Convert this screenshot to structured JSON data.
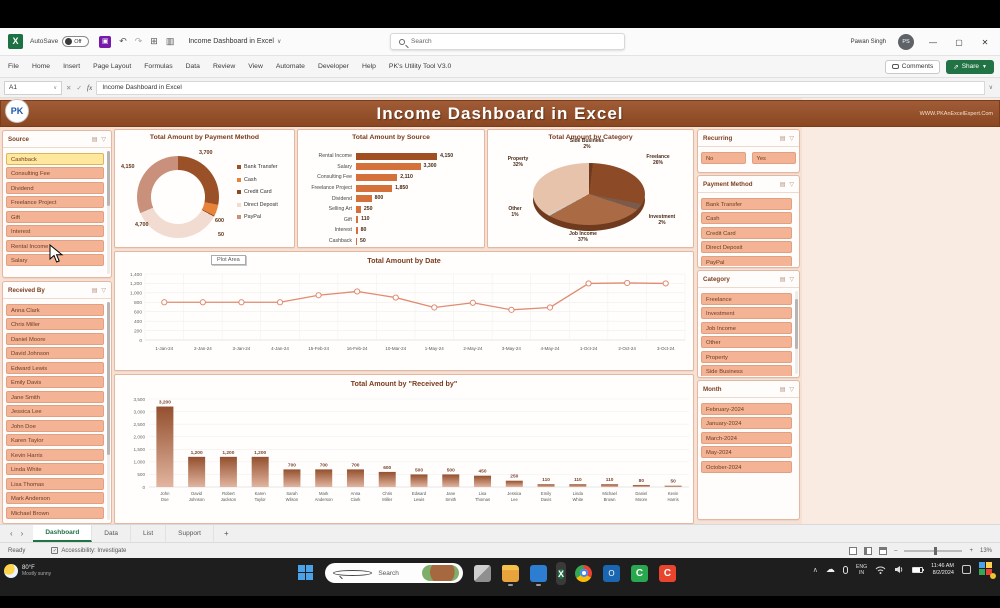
{
  "window": {
    "autosave_label": "AutoSave",
    "autosave_state": "Off",
    "doc_title": "Income Dashboard in Excel",
    "search_placeholder": "Search",
    "user_name": "Pawan Singh",
    "user_initials": "PS",
    "comments_label": "Comments",
    "share_label": "Share"
  },
  "ribbon": {
    "tabs": [
      "File",
      "Home",
      "Insert",
      "Page Layout",
      "Formulas",
      "Data",
      "Review",
      "View",
      "Automate",
      "Developer",
      "Help",
      "PK's Utility Tool V3.0"
    ]
  },
  "formula_bar": {
    "cell_ref": "A1",
    "fx": "fx",
    "formula": "Income Dashboard in Excel"
  },
  "dashboard": {
    "title": "Income Dashboard in Excel",
    "website": "WWW.PKAnExcelExpert.Com",
    "logo_text": "PK",
    "slicers": {
      "source": {
        "title": "Source",
        "selected": 0,
        "items": [
          "Cashback",
          "Consulting Fee",
          "Dividend",
          "Freelance Project",
          "Gift",
          "Interest",
          "Rental Income",
          "Salary"
        ]
      },
      "received_by": {
        "title": "Received By",
        "items": [
          "Anna Clark",
          "Chris Miller",
          "Daniel Moore",
          "David Johnson",
          "Edward Lewis",
          "Emily Davis",
          "Jane Smith",
          "Jessica Lee",
          "John Doe",
          "Karen Taylor",
          "Kevin Harris",
          "Linda White",
          "Lisa Thomas",
          "Mark Anderson",
          "Michael Brown"
        ]
      },
      "recurring": {
        "title": "Recurring",
        "items": [
          "No",
          "Yes"
        ]
      },
      "payment_method": {
        "title": "Payment Method",
        "items": [
          "Bank Transfer",
          "Cash",
          "Credit Card",
          "Direct Deposit",
          "PayPal"
        ]
      },
      "category": {
        "title": "Category",
        "items": [
          "Freelance",
          "Investment",
          "Job Income",
          "Other",
          "Property",
          "Side Business"
        ]
      },
      "month": {
        "title": "Month",
        "items": [
          "February-2024",
          "January-2024",
          "March-2024",
          "May-2024",
          "October-2024"
        ]
      }
    }
  },
  "chart_data": [
    {
      "type": "pie",
      "subtype": "donut",
      "title": "Total Amount by Payment Method",
      "categories": [
        "Bank Transfer",
        "Cash",
        "Credit Card",
        "Direct Deposit",
        "PayPal"
      ],
      "values": [
        3700,
        600,
        50,
        4700,
        4150
      ],
      "labels": [
        "3,700",
        "600",
        "50",
        "4,700",
        "4,150"
      ],
      "colors": [
        "#9a5128",
        "#e8833c",
        "#8a4a2a",
        "#f2dcd2",
        "#c9917c"
      ],
      "legend_position": "right"
    },
    {
      "type": "bar",
      "title": "Total Amount by Source",
      "categories": [
        "Rental Income",
        "Salary",
        "Consulting Fee",
        "Freelance Project",
        "Dividend",
        "Selling Art",
        "Gift",
        "Interest",
        "Cashback"
      ],
      "values": [
        4150,
        3300,
        2110,
        1850,
        800,
        250,
        110,
        80,
        50
      ],
      "labels": [
        "4,150",
        "3,300",
        "2,110",
        "1,850",
        "800",
        "250",
        "110",
        "80",
        "50"
      ],
      "xlim": [
        0,
        4500
      ],
      "bar_colors": [
        "#a04e22",
        "#d4713a"
      ]
    },
    {
      "type": "pie",
      "subtype": "pie3d",
      "title": "Total Amount by Category",
      "categories": [
        "Side Business",
        "Freelance",
        "Investment",
        "Job Income",
        "Other",
        "Property"
      ],
      "values": [
        2,
        26,
        2,
        37,
        1,
        32
      ],
      "labels": [
        "2%",
        "26%",
        "2%",
        "37%",
        "1%",
        "32%"
      ],
      "colors": [
        "#6e3a1f",
        "#8d4a26",
        "#7a5a4a",
        "#aa6a43",
        "#d8cabe",
        "#e7c3ab"
      ]
    },
    {
      "type": "line",
      "title": "Total Amount by Date",
      "x": [
        "1-Jan-24",
        "2-Jan-24",
        "3-Jan-24",
        "4-Jan-24",
        "15-Feb-24",
        "16-Feb-24",
        "10-Mar-24",
        "1-May-24",
        "2-May-24",
        "3-May-24",
        "4-May-24",
        "1-Oct-24",
        "2-Oct-24",
        "3-Oct-24"
      ],
      "values": [
        800,
        800,
        800,
        800,
        950,
        1030,
        900,
        690,
        790,
        640,
        690,
        1200,
        1210,
        1200
      ],
      "ylim": [
        0,
        1400
      ],
      "ytick_step": 200,
      "grid": true,
      "line_color": "#e08b72",
      "annotation": "Plot Area"
    },
    {
      "type": "bar",
      "subtype": "column",
      "title": "Total Amount by \"Received by\"",
      "categories": [
        "John Doe",
        "David Johnson",
        "Robert Jackson",
        "Karen Taylor",
        "Sarah Wilson",
        "Mark Anderson",
        "Anna Clark",
        "Chris Miller",
        "Edward Lewis",
        "Jane Smith",
        "Lisa Thomas",
        "Jessica Lee",
        "Emily Davis",
        "Linda White",
        "Michael Brown",
        "Daniel Moore",
        "Kevin Harris"
      ],
      "values": [
        3200,
        1200,
        1200,
        1200,
        700,
        700,
        700,
        600,
        500,
        500,
        450,
        250,
        110,
        110,
        110,
        80,
        50
      ],
      "labels": [
        "3,200",
        "1,200",
        "1,200",
        "1,200",
        "700",
        "700",
        "700",
        "600",
        "500",
        "500",
        "450",
        "250",
        "110",
        "110",
        "110",
        "80",
        "50"
      ],
      "ylim": [
        0,
        3500
      ],
      "ytick_step": 500,
      "bar_color_top": "#93502e",
      "bar_color_bottom": "#e2b49f"
    }
  ],
  "sheet_tabs": {
    "nav_left": "‹",
    "nav_right": "›",
    "tabs": [
      "Dashboard",
      "Data",
      "List",
      "Support"
    ],
    "active": "Dashboard",
    "add_label": "+"
  },
  "status_bar": {
    "ready": "Ready",
    "accessibility": "Accessibility: Investigate",
    "zoom": "13%",
    "zoom_minus": "–",
    "zoom_plus": "+"
  },
  "taskbar": {
    "weather_temp": "80°F",
    "weather_desc": "Mostly sunny",
    "search_placeholder": "Search",
    "excel_letter": "X",
    "outlook_letter": "O",
    "green_c_letter": "C",
    "red_c_letter": "C",
    "tray": {
      "lang_line1": "ENG",
      "lang_line2": "IN",
      "time": "11:46 AM",
      "date": "8/2/2024"
    }
  }
}
